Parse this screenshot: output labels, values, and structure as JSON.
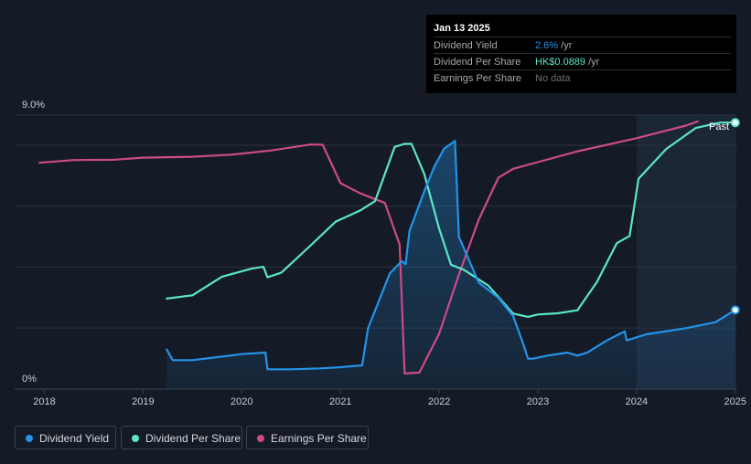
{
  "tooltip": {
    "date": "Jan 13 2025",
    "rows": [
      {
        "label": "Dividend Yield",
        "value": "2.6%",
        "unit": " /yr",
        "color": "#2394e8"
      },
      {
        "label": "Dividend Per Share",
        "value": "HK$0.0889",
        "unit": " /yr",
        "color": "#5ce5c8"
      },
      {
        "label": "Earnings Per Share",
        "value": "No data",
        "unit": "",
        "color": "#6c7078"
      }
    ]
  },
  "legend": [
    {
      "label": "Dividend Yield",
      "color": "#2394e8"
    },
    {
      "label": "Dividend Per Share",
      "color": "#5ce5c8"
    },
    {
      "label": "Earnings Per Share",
      "color": "#cc4b88"
    }
  ],
  "colors": {
    "background": "#151b26",
    "future_band": "#1b2637",
    "grid": "#2b3240",
    "axis_text": "#c9ccd1"
  },
  "chart_data": {
    "type": "line",
    "x_range": [
      2017.85,
      2025.03
    ],
    "y_label_top": "9.0%",
    "y_label_bottom": "0%",
    "x_ticks": [
      "2018",
      "2019",
      "2020",
      "2021",
      "2022",
      "2023",
      "2024",
      "2025"
    ],
    "x_tick_values": [
      2018,
      2019,
      2020,
      2021,
      2022,
      2023,
      2024,
      2025
    ],
    "past_label": "Past",
    "past_region_start": 2024.0,
    "grid": true,
    "series": [
      {
        "name": "Dividend Yield",
        "color": "#2394e8",
        "axis": "yield_percent",
        "y_range": [
          0,
          9
        ],
        "filled": true,
        "points": [
          [
            2019.24,
            1.3
          ],
          [
            2019.3,
            0.95
          ],
          [
            2019.5,
            0.95
          ],
          [
            2020.0,
            1.15
          ],
          [
            2020.24,
            1.2
          ],
          [
            2020.26,
            0.65
          ],
          [
            2020.5,
            0.65
          ],
          [
            2020.8,
            0.68
          ],
          [
            2021.0,
            0.72
          ],
          [
            2021.22,
            0.78
          ],
          [
            2021.28,
            2.0
          ],
          [
            2021.5,
            3.8
          ],
          [
            2021.62,
            4.2
          ],
          [
            2021.66,
            4.1
          ],
          [
            2021.7,
            5.2
          ],
          [
            2021.85,
            6.5
          ],
          [
            2021.95,
            7.3
          ],
          [
            2022.05,
            7.9
          ],
          [
            2022.16,
            8.15
          ],
          [
            2022.2,
            5.0
          ],
          [
            2022.4,
            3.5
          ],
          [
            2022.6,
            3.0
          ],
          [
            2022.75,
            2.4
          ],
          [
            2022.85,
            1.5
          ],
          [
            2022.9,
            1.0
          ],
          [
            2022.95,
            1.0
          ],
          [
            2023.1,
            1.1
          ],
          [
            2023.3,
            1.2
          ],
          [
            2023.4,
            1.1
          ],
          [
            2023.5,
            1.2
          ],
          [
            2023.7,
            1.6
          ],
          [
            2023.88,
            1.9
          ],
          [
            2023.9,
            1.6
          ],
          [
            2024.1,
            1.8
          ],
          [
            2024.5,
            2.0
          ],
          [
            2024.8,
            2.2
          ],
          [
            2025.0,
            2.6
          ]
        ]
      },
      {
        "name": "Dividend Per Share",
        "color": "#5ce5c8",
        "axis": "HK$",
        "y_range": [
          0,
          0.0914
        ],
        "filled": false,
        "points": [
          [
            2019.24,
            0.0302
          ],
          [
            2019.5,
            0.0313
          ],
          [
            2019.8,
            0.0375
          ],
          [
            2020.1,
            0.0402
          ],
          [
            2020.22,
            0.0408
          ],
          [
            2020.26,
            0.0373
          ],
          [
            2020.4,
            0.0388
          ],
          [
            2020.7,
            0.048
          ],
          [
            2020.95,
            0.0558
          ],
          [
            2021.2,
            0.0596
          ],
          [
            2021.35,
            0.0627
          ],
          [
            2021.55,
            0.0808
          ],
          [
            2021.65,
            0.0818
          ],
          [
            2021.72,
            0.0818
          ],
          [
            2021.85,
            0.0717
          ],
          [
            2022.0,
            0.0535
          ],
          [
            2022.12,
            0.0415
          ],
          [
            2022.25,
            0.0398
          ],
          [
            2022.5,
            0.0345
          ],
          [
            2022.75,
            0.0252
          ],
          [
            2022.9,
            0.0241
          ],
          [
            2023.0,
            0.0249
          ],
          [
            2023.2,
            0.0253
          ],
          [
            2023.4,
            0.0263
          ],
          [
            2023.6,
            0.0358
          ],
          [
            2023.8,
            0.0487
          ],
          [
            2023.93,
            0.0511
          ],
          [
            2024.02,
            0.0702
          ],
          [
            2024.3,
            0.0801
          ],
          [
            2024.6,
            0.0871
          ],
          [
            2024.85,
            0.0889
          ],
          [
            2025.0,
            0.0889
          ]
        ]
      },
      {
        "name": "Earnings Per Share",
        "color": "#cc4b88",
        "axis": "HK$",
        "y_range": [
          0,
          0.0914
        ],
        "filled": false,
        "points": [
          [
            2017.95,
            0.0755
          ],
          [
            2018.3,
            0.0764
          ],
          [
            2018.7,
            0.0765
          ],
          [
            2019.0,
            0.0772
          ],
          [
            2019.5,
            0.0775
          ],
          [
            2019.9,
            0.0782
          ],
          [
            2020.3,
            0.0796
          ],
          [
            2020.7,
            0.0816
          ],
          [
            2020.82,
            0.0815
          ],
          [
            2021.0,
            0.0687
          ],
          [
            2021.2,
            0.0653
          ],
          [
            2021.45,
            0.0621
          ],
          [
            2021.6,
            0.0482
          ],
          [
            2021.65,
            0.0052
          ],
          [
            2021.8,
            0.0055
          ],
          [
            2022.0,
            0.0185
          ],
          [
            2022.2,
            0.0382
          ],
          [
            2022.4,
            0.0565
          ],
          [
            2022.6,
            0.0705
          ],
          [
            2022.75,
            0.0735
          ],
          [
            2023.0,
            0.0757
          ],
          [
            2023.4,
            0.0793
          ],
          [
            2024.0,
            0.0837
          ],
          [
            2024.5,
            0.0879
          ],
          [
            2024.62,
            0.0893
          ]
        ]
      }
    ]
  }
}
